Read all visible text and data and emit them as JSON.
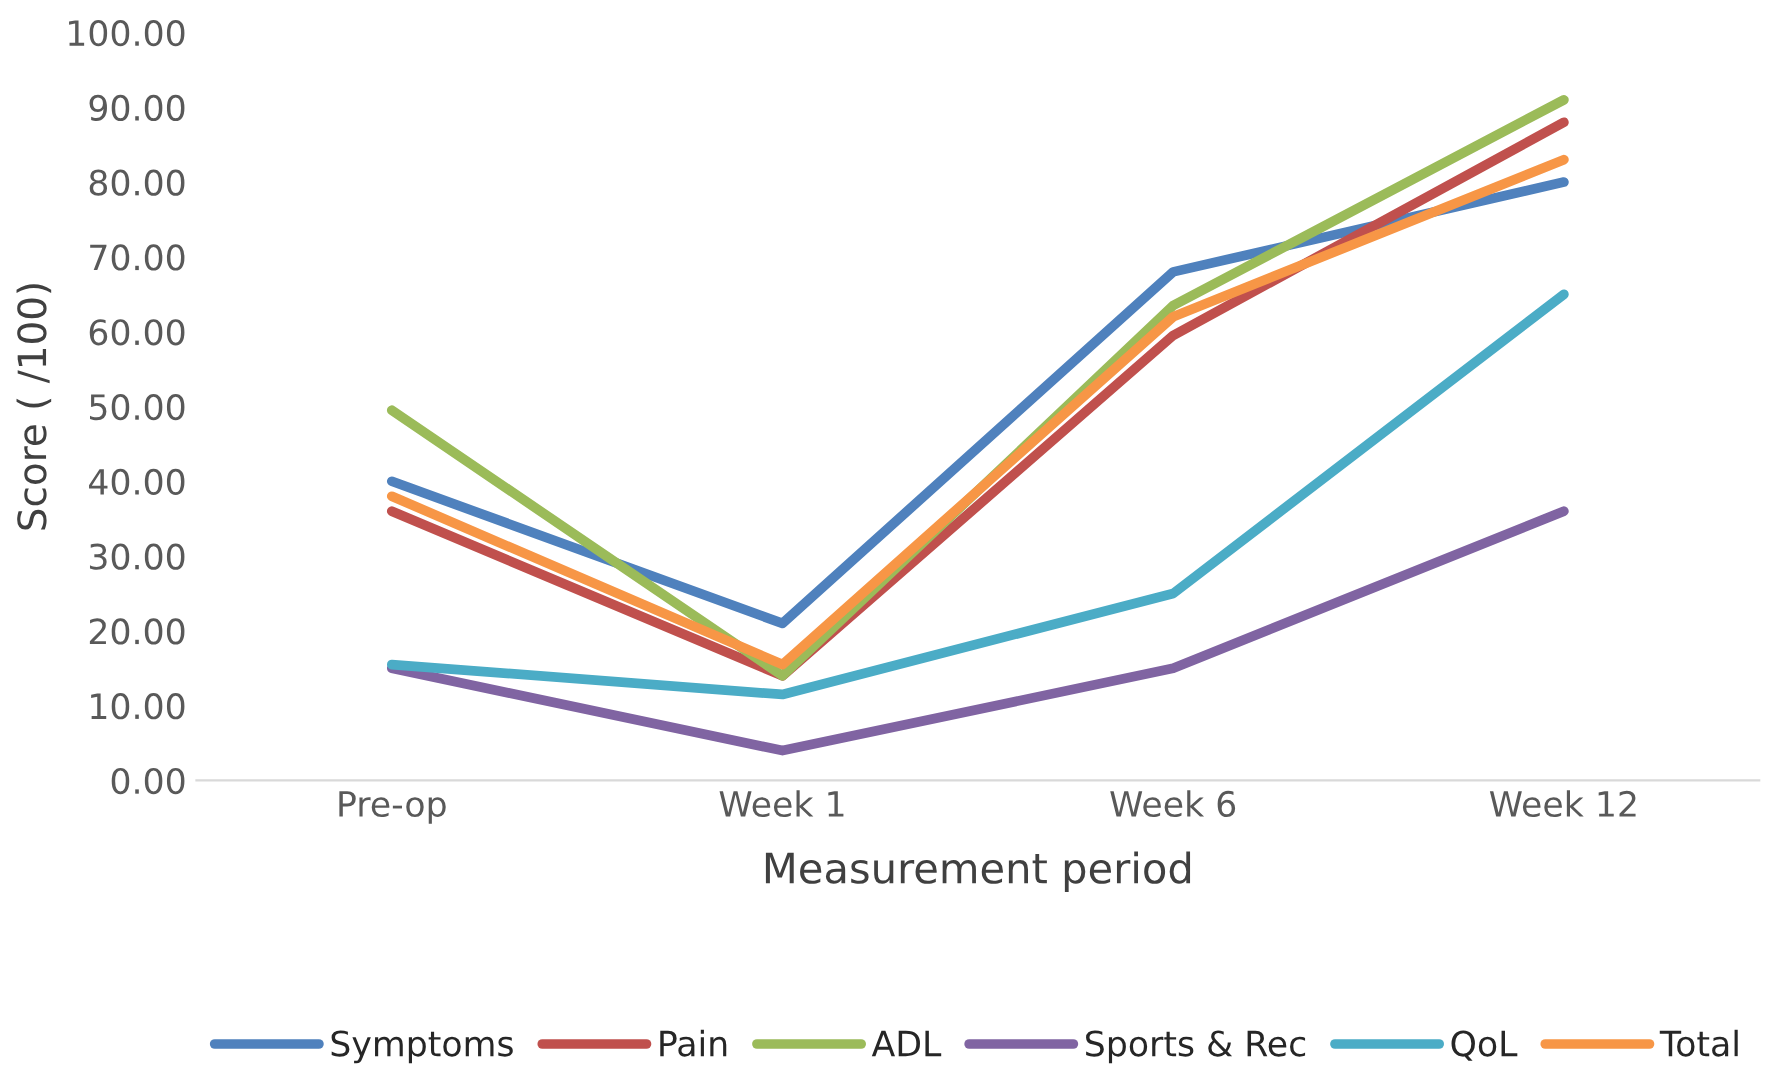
{
  "chart_data": {
    "type": "line",
    "xlabel": "Measurement period",
    "ylabel": "Score ( /100)",
    "categories": [
      "Pre-op",
      "Week 1",
      "Week 6",
      "Week 12"
    ],
    "series": [
      {
        "name": "Symptoms",
        "color": "#4f81bd",
        "values": [
          40,
          21,
          68,
          80
        ]
      },
      {
        "name": "Pain",
        "color": "#c0504d",
        "values": [
          36,
          14,
          59.5,
          88
        ]
      },
      {
        "name": "ADL",
        "color": "#9bbb59",
        "values": [
          49.5,
          14,
          63.5,
          91
        ]
      },
      {
        "name": "Sports & Rec",
        "color": "#8064a2",
        "values": [
          15,
          4,
          15,
          36
        ]
      },
      {
        "name": "QoL",
        "color": "#4bacc6",
        "values": [
          15.5,
          11.5,
          25,
          65
        ]
      },
      {
        "name": "Total",
        "color": "#f79646",
        "values": [
          38,
          15.5,
          62,
          83
        ]
      }
    ],
    "ylim": [
      0,
      100
    ],
    "yticks": [
      {
        "value": 0,
        "label": "0.00"
      },
      {
        "value": 10,
        "label": "10.00"
      },
      {
        "value": 20,
        "label": "20.00"
      },
      {
        "value": 30,
        "label": "30.00"
      },
      {
        "value": 40,
        "label": "40.00"
      },
      {
        "value": 50,
        "label": "50.00"
      },
      {
        "value": 60,
        "label": "60.00"
      },
      {
        "value": 70,
        "label": "70.00"
      },
      {
        "value": 80,
        "label": "80.00"
      },
      {
        "value": 90,
        "label": "90.00"
      },
      {
        "value": 100,
        "label": "100.00"
      }
    ],
    "legend": "bottom",
    "marker": "none",
    "line_style": "solid",
    "grid": false
  }
}
